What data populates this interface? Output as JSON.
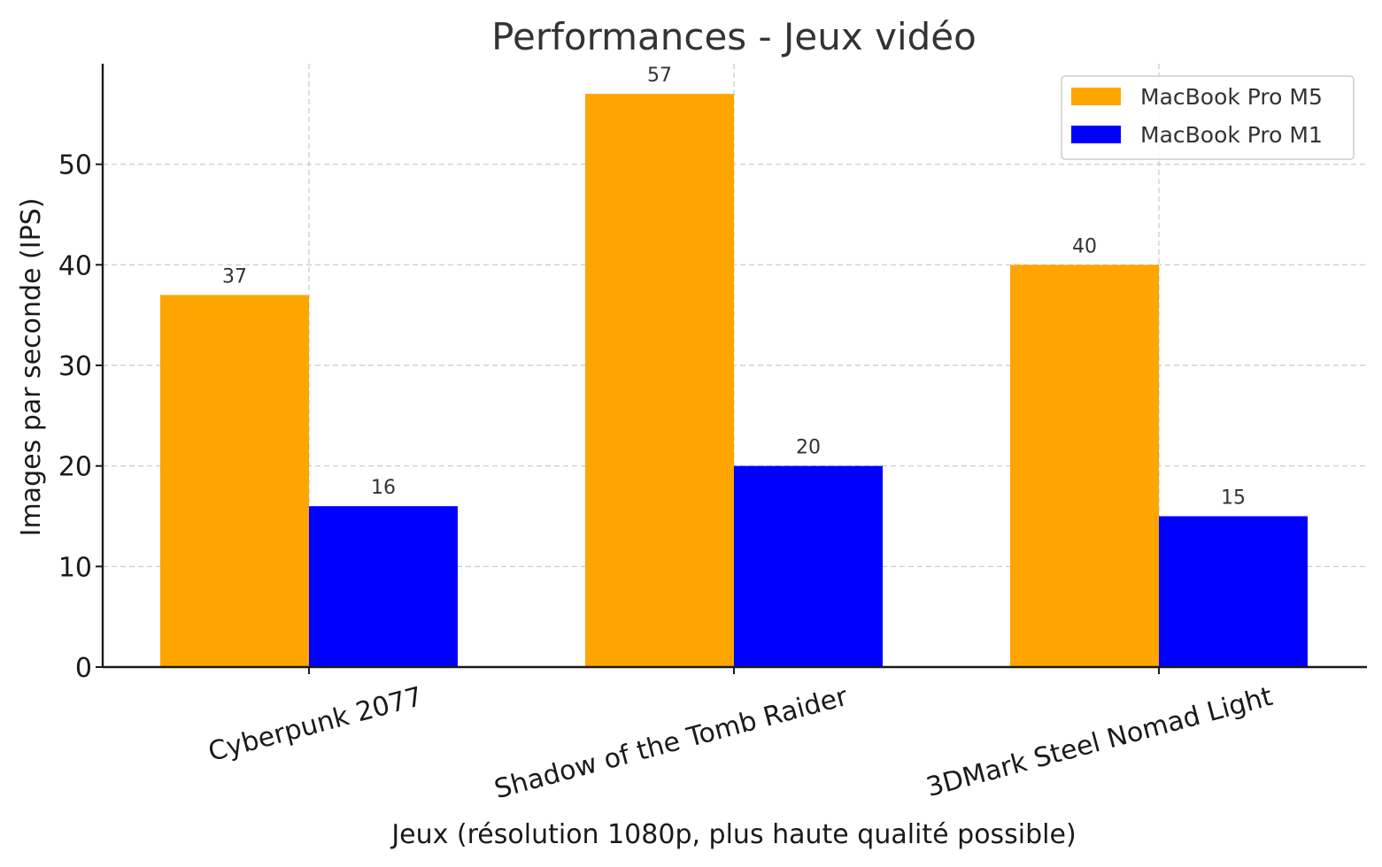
{
  "chart_data": {
    "type": "bar",
    "title": "Performances - Jeux vidéo",
    "xlabel": "Jeux (résolution 1080p, plus haute qualité possible)",
    "ylabel": "Images par seconde (IPS)",
    "categories": [
      "Cyberpunk 2077",
      "Shadow of the Tomb Raider",
      "3DMark Steel Nomad Light"
    ],
    "series": [
      {
        "name": "MacBook Pro M5",
        "values": [
          37,
          57,
          40
        ],
        "color": "#FFA500"
      },
      {
        "name": "MacBook Pro M1",
        "values": [
          16,
          20,
          15
        ],
        "color": "#0000FF"
      }
    ],
    "ylim": [
      0,
      60
    ],
    "yticks": [
      0,
      10,
      20,
      30,
      40,
      50
    ],
    "grid": true,
    "legend_position": "top-right",
    "category_label_rotation": "slanted"
  }
}
